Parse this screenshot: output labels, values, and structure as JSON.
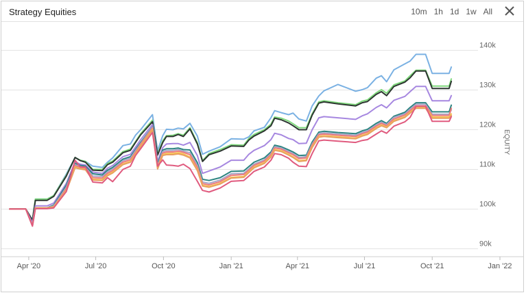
{
  "window": {
    "title": "Strategy Equities",
    "ranges": [
      "10m",
      "1h",
      "1d",
      "1w",
      "All"
    ],
    "close_icon": "close-icon"
  },
  "chart_data": {
    "type": "line",
    "title": "Strategy Equities",
    "ylabel": "EQUITY",
    "xlabel": "",
    "x_ticks": [
      "Apr '20",
      "Jul '20",
      "Oct '20",
      "Jan '21",
      "Apr '21",
      "Jul '21",
      "Oct '21",
      "Jan '22"
    ],
    "y_ticks": [
      "90k",
      "100k",
      "110k",
      "120k",
      "130k",
      "140k"
    ],
    "ylim": [
      88000,
      147000
    ],
    "xlim": [
      "2020-03-06",
      "2022-01-01"
    ],
    "grid": true,
    "legend": "none",
    "x": [
      "2020-03-06",
      "2020-03-28",
      "2020-04-06",
      "2020-04-10",
      "2020-04-26",
      "2020-05-05",
      "2020-05-22",
      "2020-06-03",
      "2020-06-10",
      "2020-06-17",
      "2020-06-27",
      "2020-07-10",
      "2020-07-17",
      "2020-07-24",
      "2020-08-07",
      "2020-08-17",
      "2020-08-24",
      "2020-08-31",
      "2020-09-16",
      "2020-09-23",
      "2020-09-30",
      "2020-10-05",
      "2020-10-14",
      "2020-10-21",
      "2020-10-28",
      "2020-11-06",
      "2020-11-16",
      "2020-11-23",
      "2020-12-02",
      "2020-12-17",
      "2021-01-01",
      "2021-01-18",
      "2021-01-25",
      "2021-02-01",
      "2021-02-15",
      "2021-02-24",
      "2021-03-01",
      "2021-03-10",
      "2021-03-20",
      "2021-03-26",
      "2021-04-03",
      "2021-04-13",
      "2021-04-21",
      "2021-04-30",
      "2021-05-07",
      "2021-05-26",
      "2021-06-19",
      "2021-06-28",
      "2021-07-05",
      "2021-07-17",
      "2021-07-24",
      "2021-07-31",
      "2021-08-10",
      "2021-08-25",
      "2021-09-01",
      "2021-09-09",
      "2021-09-22",
      "2021-10-01",
      "2021-10-17",
      "2021-10-24",
      "2021-10-27"
    ],
    "series": [
      {
        "color": "#7ab1e3",
        "values": [
          100000,
          100000,
          97200,
          102500,
          102500,
          103400,
          108800,
          113000,
          112300,
          112000,
          110800,
          110500,
          111800,
          112900,
          116000,
          116400,
          118600,
          120000,
          123800,
          114700,
          118500,
          120100,
          120000,
          120400,
          120200,
          121600,
          118400,
          113800,
          114600,
          115700,
          117700,
          117600,
          118200,
          119700,
          120600,
          123000,
          124800,
          124300,
          123800,
          124200,
          122700,
          122200,
          126000,
          128500,
          129800,
          131400,
          129700,
          130100,
          130600,
          133000,
          133600,
          132100,
          135100,
          136600,
          137300,
          139000,
          139000,
          134200,
          134200,
          134200,
          135800
        ]
      },
      {
        "color": "#7ed87b",
        "values": [
          100000,
          100000,
          97200,
          102500,
          102500,
          103400,
          108500,
          113000,
          112300,
          112000,
          110000,
          110000,
          111500,
          112100,
          114500,
          115100,
          117000,
          119000,
          122400,
          113800,
          117200,
          118500,
          118600,
          119000,
          118600,
          120500,
          116700,
          112200,
          114000,
          115000,
          116200,
          116100,
          117800,
          118800,
          120000,
          121400,
          123200,
          122900,
          122200,
          121500,
          120500,
          120500,
          124000,
          127000,
          127300,
          126800,
          126300,
          127200,
          127500,
          129300,
          130100,
          129200,
          131300,
          132300,
          133600,
          135000,
          135000,
          131000,
          131000,
          131000,
          132800
        ]
      },
      {
        "color": "#2d3631",
        "values": [
          100000,
          100000,
          97200,
          102200,
          102200,
          103200,
          108300,
          113000,
          112200,
          111800,
          109800,
          109700,
          111200,
          111800,
          114200,
          114800,
          116800,
          118700,
          122000,
          113600,
          116800,
          118300,
          118300,
          118800,
          118300,
          120200,
          116400,
          112000,
          113700,
          114600,
          115900,
          115800,
          117400,
          118400,
          119700,
          121000,
          122900,
          122500,
          121700,
          121000,
          120000,
          120000,
          123700,
          126700,
          127000,
          126500,
          126000,
          126800,
          127100,
          128900,
          129600,
          128600,
          130900,
          132000,
          133100,
          134800,
          134800,
          130400,
          130400,
          130400,
          132200
        ]
      },
      {
        "color": "#a687e0",
        "values": [
          100000,
          100000,
          96500,
          100800,
          100800,
          101500,
          106500,
          111900,
          111300,
          111100,
          109300,
          109000,
          110300,
          111000,
          113200,
          113800,
          115600,
          117500,
          121300,
          112000,
          115500,
          116400,
          116500,
          116500,
          116100,
          116800,
          113500,
          109000,
          109600,
          110600,
          112300,
          112300,
          113800,
          114800,
          116000,
          117500,
          119100,
          118700,
          117800,
          117500,
          116500,
          116600,
          120000,
          123000,
          123300,
          123000,
          122600,
          123500,
          124000,
          125600,
          126300,
          125500,
          127400,
          128400,
          129600,
          130900,
          130900,
          127300,
          127300,
          127300,
          128600
        ]
      },
      {
        "color": "#2c8480",
        "values": [
          100000,
          100000,
          95800,
          100300,
          100300,
          101000,
          106000,
          111500,
          111000,
          110800,
          108900,
          108600,
          109800,
          110500,
          112600,
          113200,
          115000,
          116800,
          120700,
          111400,
          114900,
          115200,
          115200,
          115400,
          115000,
          114900,
          111700,
          107500,
          107200,
          107900,
          109500,
          109600,
          110700,
          111800,
          112900,
          114400,
          116100,
          115700,
          114900,
          114400,
          113500,
          113600,
          116900,
          119400,
          119600,
          119300,
          119000,
          119700,
          120100,
          121600,
          122300,
          121600,
          123400,
          124400,
          125600,
          126800,
          126800,
          124500,
          124500,
          124500,
          126200
        ]
      },
      {
        "color": "#a8a6c7",
        "values": [
          100000,
          100000,
          95800,
          100300,
          100300,
          100800,
          105500,
          111200,
          110700,
          110500,
          108300,
          108200,
          109400,
          110100,
          112200,
          112800,
          114700,
          116500,
          120600,
          111000,
          114500,
          114800,
          114800,
          115000,
          114600,
          114200,
          111000,
          106800,
          106500,
          107300,
          108900,
          109000,
          110100,
          111300,
          112400,
          114000,
          115700,
          115400,
          114500,
          114000,
          113000,
          113200,
          116400,
          119000,
          119200,
          118900,
          118600,
          119300,
          119700,
          121200,
          121900,
          121300,
          123100,
          124000,
          125200,
          126400,
          126400,
          123900,
          123900,
          123900,
          125000
        ]
      },
      {
        "color": "#ef7a7a",
        "values": [
          100000,
          100000,
          95800,
          100300,
          100300,
          100600,
          105100,
          110900,
          110500,
          110300,
          107900,
          107800,
          109000,
          109700,
          111800,
          112400,
          114300,
          116300,
          120400,
          110700,
          114100,
          114400,
          114400,
          114600,
          114300,
          113700,
          110500,
          106400,
          106100,
          106900,
          108500,
          108700,
          109800,
          111000,
          112100,
          113700,
          115400,
          115100,
          114200,
          113700,
          112700,
          112900,
          116100,
          118700,
          118900,
          118600,
          118300,
          119000,
          119400,
          120900,
          121600,
          121000,
          122700,
          123700,
          124800,
          126000,
          126000,
          123600,
          123600,
          123600,
          125400
        ]
      },
      {
        "color": "#f5c451",
        "values": [
          100000,
          100000,
          95800,
          100300,
          100300,
          100500,
          104700,
          110600,
          110200,
          110000,
          107500,
          107400,
          108600,
          109300,
          111400,
          112000,
          113900,
          115900,
          120100,
          110300,
          113700,
          114000,
          114000,
          114200,
          113900,
          113100,
          109900,
          106000,
          105700,
          106500,
          108000,
          108200,
          109400,
          110600,
          111700,
          113300,
          115000,
          114700,
          113800,
          113200,
          112200,
          112400,
          115700,
          118300,
          118500,
          118200,
          117900,
          118600,
          119000,
          120500,
          121200,
          120700,
          122300,
          123300,
          124400,
          125600,
          125600,
          123200,
          123200,
          123200,
          124000
        ]
      },
      {
        "color": "#e8a062",
        "values": [
          100000,
          100000,
          95800,
          100300,
          100300,
          100400,
          104500,
          110400,
          110100,
          109900,
          107300,
          107200,
          108400,
          109100,
          111200,
          111800,
          113700,
          115700,
          119900,
          110100,
          113500,
          113700,
          113700,
          113900,
          113600,
          112900,
          109700,
          105800,
          105500,
          106300,
          107800,
          108000,
          109200,
          110400,
          111500,
          113100,
          114800,
          114500,
          113600,
          113000,
          112000,
          112200,
          115500,
          118100,
          118300,
          118000,
          117700,
          118400,
          118800,
          120300,
          121000,
          120500,
          122100,
          123100,
          124200,
          125400,
          125400,
          122900,
          122900,
          122900,
          123600
        ]
      },
      {
        "color": "#e05a7e",
        "values": [
          100000,
          100000,
          95700,
          100100,
          100100,
          100300,
          104400,
          112300,
          110600,
          110600,
          106800,
          106600,
          107900,
          106900,
          110000,
          110800,
          113500,
          115200,
          119300,
          110800,
          112400,
          111100,
          111000,
          110800,
          111300,
          110200,
          107000,
          104700,
          104300,
          105300,
          107000,
          107200,
          108300,
          109500,
          110600,
          112300,
          114000,
          113700,
          112800,
          111800,
          110800,
          110700,
          114000,
          117200,
          117400,
          117100,
          116800,
          117300,
          117500,
          118900,
          119700,
          119100,
          120900,
          122000,
          123100,
          125900,
          125900,
          122100,
          122100,
          122100,
          123300
        ]
      }
    ]
  }
}
